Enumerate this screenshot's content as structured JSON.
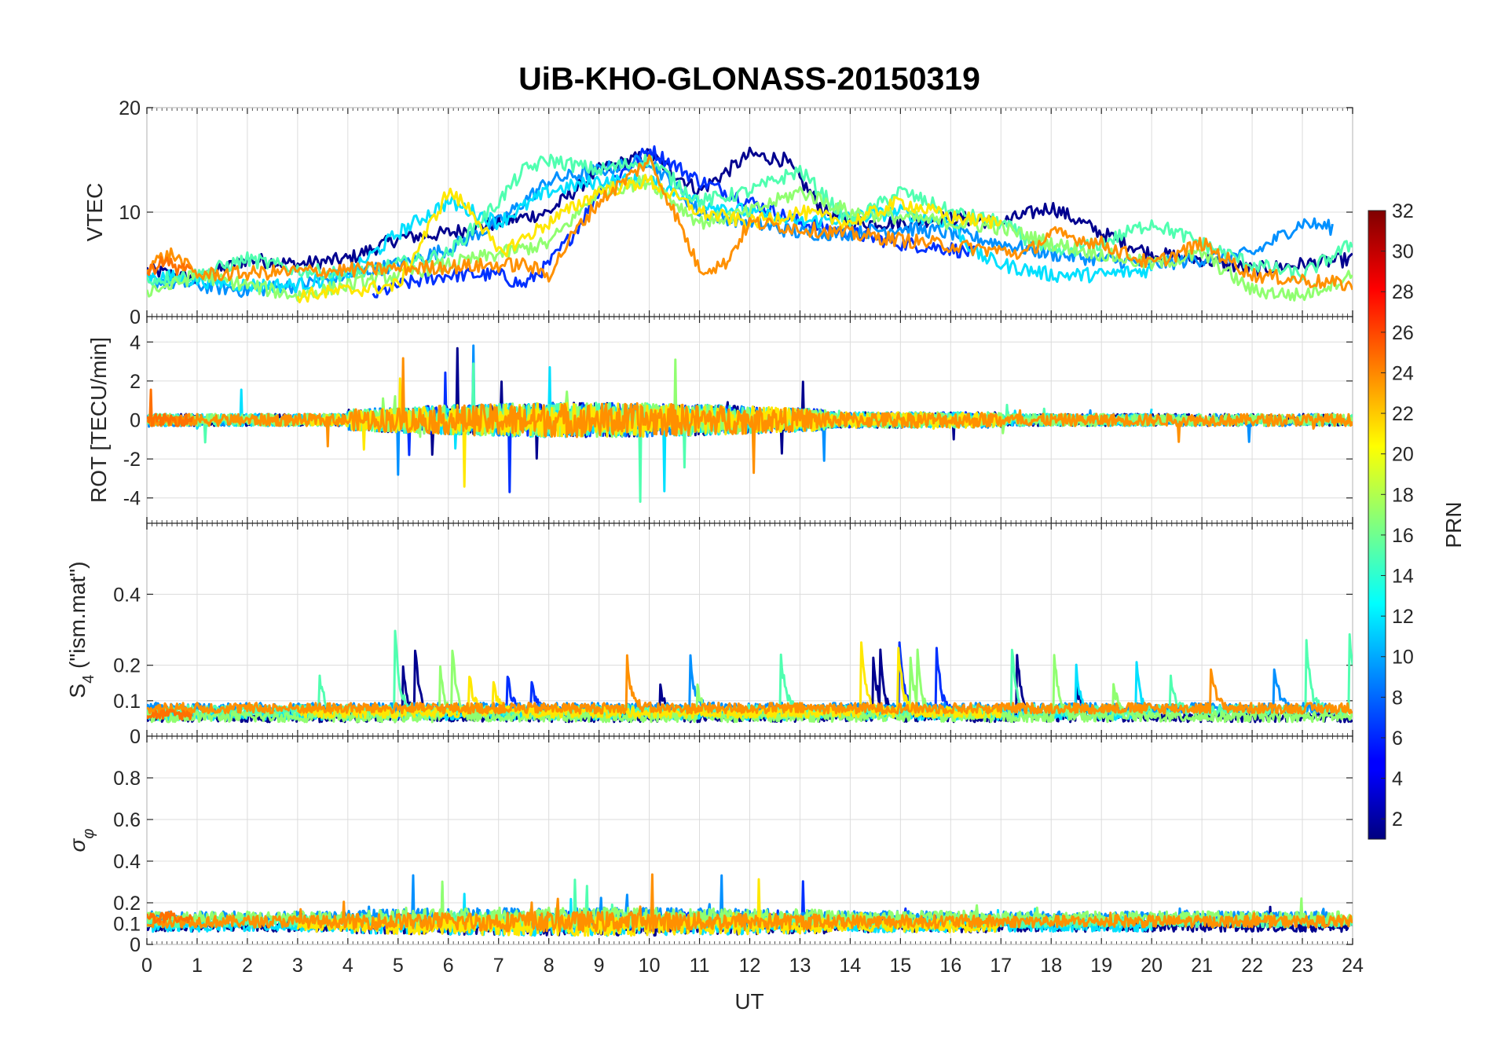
{
  "chart_data": {
    "type": "line",
    "title": "UiB-KHO-GLONASS-20150319",
    "xlabel": "UT",
    "xlim": [
      0,
      24
    ],
    "x_ticks": [
      "0",
      "1",
      "2",
      "3",
      "4",
      "5",
      "6",
      "7",
      "8",
      "9",
      "10",
      "11",
      "12",
      "13",
      "14",
      "15",
      "16",
      "17",
      "18",
      "19",
      "20",
      "21",
      "22",
      "23",
      "24"
    ],
    "panels": [
      {
        "id": "vtec",
        "ylabel": "VTEC",
        "ylim": [
          0,
          20
        ],
        "yticks": [
          "0",
          "10",
          "20"
        ]
      },
      {
        "id": "rot",
        "ylabel": "ROT [TECU/min]",
        "ylim": [
          -5.3,
          5.3
        ],
        "yticks": [
          "-4",
          "-2",
          "0",
          "2",
          "4"
        ]
      },
      {
        "id": "s4",
        "ylabel_main": "S",
        "ylabel_sub": "4",
        "ylabel_rest": " (\"ism.mat\")",
        "ylim": [
          0,
          0.6
        ],
        "yticks": [
          "0",
          "0.1",
          "0.2",
          "0.4"
        ]
      },
      {
        "id": "sigma",
        "ylabel_main": "σ",
        "ylabel_sub": "φ",
        "ylim": [
          0,
          1
        ],
        "yticks": [
          "0",
          "0.1",
          "0.2",
          "0.4",
          "0.6",
          "0.8"
        ]
      }
    ],
    "colorbar": {
      "label": "PRN",
      "range": [
        1,
        32
      ],
      "ticks": [
        "2",
        "4",
        "6",
        "8",
        "10",
        "12",
        "14",
        "16",
        "18",
        "20",
        "22",
        "24",
        "26",
        "28",
        "30",
        "32"
      ],
      "colormap": "jet"
    },
    "series": [
      {
        "prn": 1,
        "color": "#00008f",
        "vtec": [
          [
            0,
            4.5
          ],
          [
            1,
            3.5
          ],
          [
            2,
            5.5
          ],
          [
            3,
            5
          ],
          [
            4,
            5.5
          ],
          [
            5,
            7.5
          ],
          [
            6,
            8
          ],
          [
            7,
            9
          ],
          [
            8,
            10
          ],
          [
            9,
            14
          ],
          [
            10,
            15.5
          ],
          [
            11,
            12
          ],
          [
            12,
            15.5
          ],
          [
            12.7,
            15
          ],
          [
            13.5,
            10
          ],
          [
            14,
            9
          ],
          [
            15,
            9
          ],
          [
            16,
            9.5
          ],
          [
            17,
            9
          ],
          [
            18,
            10.5
          ],
          [
            19,
            8
          ],
          [
            20,
            6
          ],
          [
            21,
            5.5
          ],
          [
            22,
            4.5
          ],
          [
            23,
            5
          ],
          [
            24,
            5.5
          ]
        ]
      },
      {
        "prn": 4,
        "color": "#0030ff",
        "vtec": [
          [
            4.5,
            2
          ],
          [
            5,
            3
          ],
          [
            6,
            4
          ],
          [
            7,
            4
          ],
          [
            7.5,
            3
          ],
          [
            8,
            5
          ],
          [
            8.5,
            8
          ],
          [
            9,
            12
          ],
          [
            10,
            16
          ],
          [
            11,
            13
          ],
          [
            12,
            11
          ],
          [
            13,
            9
          ],
          [
            14,
            8
          ],
          [
            15,
            7
          ],
          [
            16,
            6.5
          ],
          [
            16.5,
            6
          ]
        ]
      },
      {
        "prn": 7,
        "color": "#0090ff",
        "vtec": [
          [
            0,
            3.5
          ],
          [
            1,
            3
          ],
          [
            2,
            2.5
          ],
          [
            3,
            3
          ],
          [
            4,
            4
          ],
          [
            5,
            5
          ],
          [
            6,
            6.5
          ],
          [
            7,
            9
          ],
          [
            8,
            13
          ],
          [
            9,
            14
          ],
          [
            10,
            15
          ],
          [
            11,
            10
          ],
          [
            12,
            9
          ],
          [
            13,
            8
          ],
          [
            14,
            8
          ],
          [
            15,
            8.5
          ],
          [
            16,
            8
          ],
          [
            17,
            7
          ],
          [
            18,
            6
          ],
          [
            19,
            5.5
          ],
          [
            20,
            5
          ],
          [
            21,
            5.5
          ],
          [
            22,
            6
          ],
          [
            23,
            9
          ],
          [
            23.6,
            8.5
          ]
        ]
      },
      {
        "prn": 12,
        "color": "#00e0ff",
        "vtec": [
          [
            0,
            4
          ],
          [
            1,
            3.5
          ],
          [
            2,
            3
          ],
          [
            3,
            3
          ],
          [
            4,
            4
          ],
          [
            5,
            8
          ],
          [
            6,
            11
          ],
          [
            7,
            9
          ],
          [
            8,
            12
          ],
          [
            9,
            13
          ],
          [
            10,
            13
          ],
          [
            11,
            11
          ],
          [
            12,
            10
          ],
          [
            13,
            9
          ],
          [
            14,
            9.5
          ],
          [
            15,
            10
          ],
          [
            16,
            9
          ],
          [
            16.5,
            6
          ],
          [
            17,
            5
          ],
          [
            18,
            4
          ],
          [
            19,
            4
          ],
          [
            20,
            4.5
          ]
        ]
      },
      {
        "prn": 15,
        "color": "#50ffb0",
        "vtec": [
          [
            0,
            3.5
          ],
          [
            1,
            4
          ],
          [
            2,
            5.5
          ],
          [
            3,
            4.5
          ],
          [
            4,
            4
          ],
          [
            5,
            5
          ],
          [
            6,
            6
          ],
          [
            7,
            11
          ],
          [
            7.5,
            14
          ],
          [
            8,
            15
          ],
          [
            9,
            14
          ],
          [
            10,
            15
          ],
          [
            11,
            11
          ],
          [
            12,
            12
          ],
          [
            13,
            14
          ],
          [
            14,
            9
          ],
          [
            15,
            12
          ],
          [
            16,
            10
          ],
          [
            17,
            9
          ],
          [
            18,
            6
          ],
          [
            19,
            7
          ],
          [
            20,
            9
          ],
          [
            21,
            7
          ],
          [
            22,
            5
          ],
          [
            23,
            4
          ],
          [
            24,
            7
          ]
        ]
      },
      {
        "prn": 17,
        "color": "#90ff70",
        "vtec": [
          [
            0,
            2.5
          ],
          [
            0.5,
            3
          ],
          [
            1,
            4
          ],
          [
            2,
            3
          ],
          [
            3,
            2
          ],
          [
            4,
            3
          ],
          [
            5,
            4
          ],
          [
            6,
            5
          ],
          [
            7,
            6
          ],
          [
            8,
            7
          ],
          [
            9,
            12
          ],
          [
            10,
            13
          ],
          [
            11,
            9
          ],
          [
            12,
            10
          ],
          [
            13,
            12
          ],
          [
            14,
            10
          ],
          [
            15,
            9.5
          ],
          [
            16,
            9
          ],
          [
            17,
            8.5
          ],
          [
            18,
            7
          ],
          [
            19,
            6
          ],
          [
            20,
            5
          ],
          [
            21,
            6
          ],
          [
            22,
            2.5
          ],
          [
            23,
            2
          ],
          [
            24,
            4
          ]
        ]
      },
      {
        "prn": 20,
        "color": "#ffe800",
        "vtec": [
          [
            3,
            2
          ],
          [
            4,
            2.5
          ],
          [
            5,
            3
          ],
          [
            6,
            12
          ],
          [
            6.5,
            10
          ],
          [
            7,
            6
          ],
          [
            8,
            9
          ],
          [
            9,
            12
          ],
          [
            10,
            13
          ],
          [
            11,
            10
          ],
          [
            12,
            9
          ],
          [
            13,
            10
          ],
          [
            14,
            9
          ],
          [
            15,
            11
          ],
          [
            16,
            9.5
          ],
          [
            17,
            9
          ]
        ]
      },
      {
        "prn": 23,
        "color": "#ff9000",
        "vtec": [
          [
            0,
            5
          ],
          [
            0.5,
            6
          ],
          [
            1,
            4
          ],
          [
            7.5,
            5
          ],
          [
            8,
            4
          ],
          [
            8.5,
            8
          ],
          [
            9,
            11
          ],
          [
            10,
            15
          ],
          [
            10.5,
            10
          ],
          [
            11,
            4.5
          ],
          [
            11.5,
            5
          ],
          [
            12,
            9
          ],
          [
            17.5,
            6
          ],
          [
            18,
            8
          ],
          [
            19,
            7
          ],
          [
            20,
            5
          ],
          [
            21,
            7
          ],
          [
            22,
            4
          ],
          [
            23,
            3.5
          ],
          [
            24,
            3
          ]
        ]
      },
      {
        "prn": 24,
        "color": "#ff7000",
        "vtec": [
          [
            0,
            4
          ],
          [
            0.3,
            5.5
          ],
          [
            0.6,
            4.5
          ],
          [
            0.9,
            5
          ]
        ]
      }
    ]
  }
}
